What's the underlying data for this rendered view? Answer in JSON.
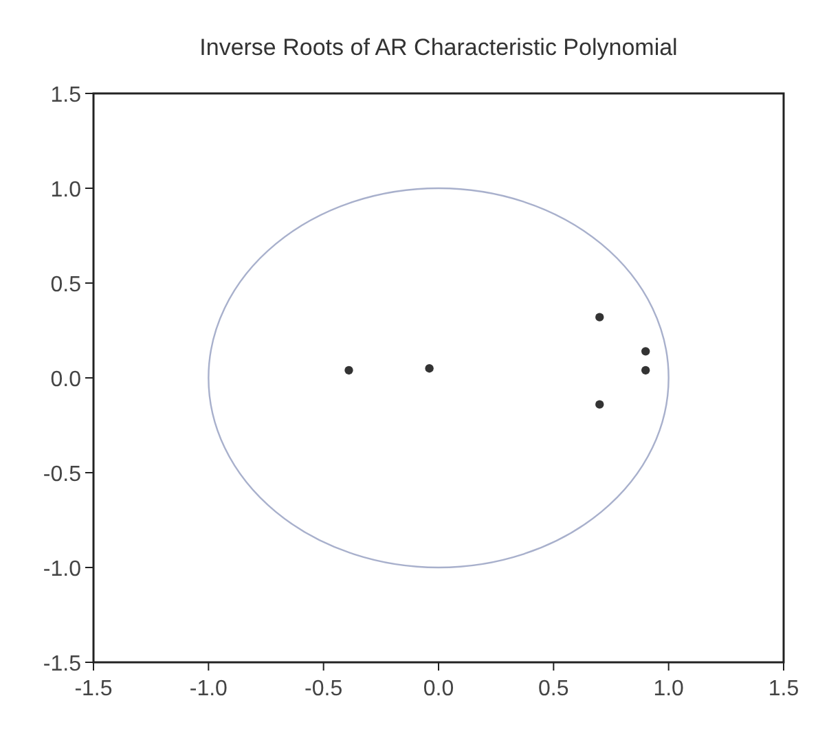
{
  "chart_data": {
    "type": "scatter",
    "title": "Inverse Roots of AR Characteristic Polynomial",
    "xlim": [
      -1.5,
      1.5
    ],
    "ylim": [
      -1.5,
      1.5
    ],
    "xticks": [
      -1.5,
      {
        "value": -1,
        "label": "-1.0"
      },
      -0.5,
      {
        "value": 0,
        "label": "0.0"
      },
      0.5,
      {
        "value": 1,
        "label": "1.0"
      },
      1.5
    ],
    "yticks": [
      -1.5,
      {
        "value": -1,
        "label": "-1.0"
      },
      -0.5,
      {
        "value": 0,
        "label": "0.0"
      },
      0.5,
      {
        "value": 1,
        "label": "1.0"
      },
      1.5
    ],
    "marker": "circle",
    "series": [
      {
        "color": "#333333",
        "x": [
          -0.39,
          -0.04,
          0.7,
          0.9,
          0.9,
          0.7
        ],
        "values": [
          0.04,
          0.05,
          0.32,
          0.14,
          0.04,
          -0.14
        ]
      }
    ]
  }
}
